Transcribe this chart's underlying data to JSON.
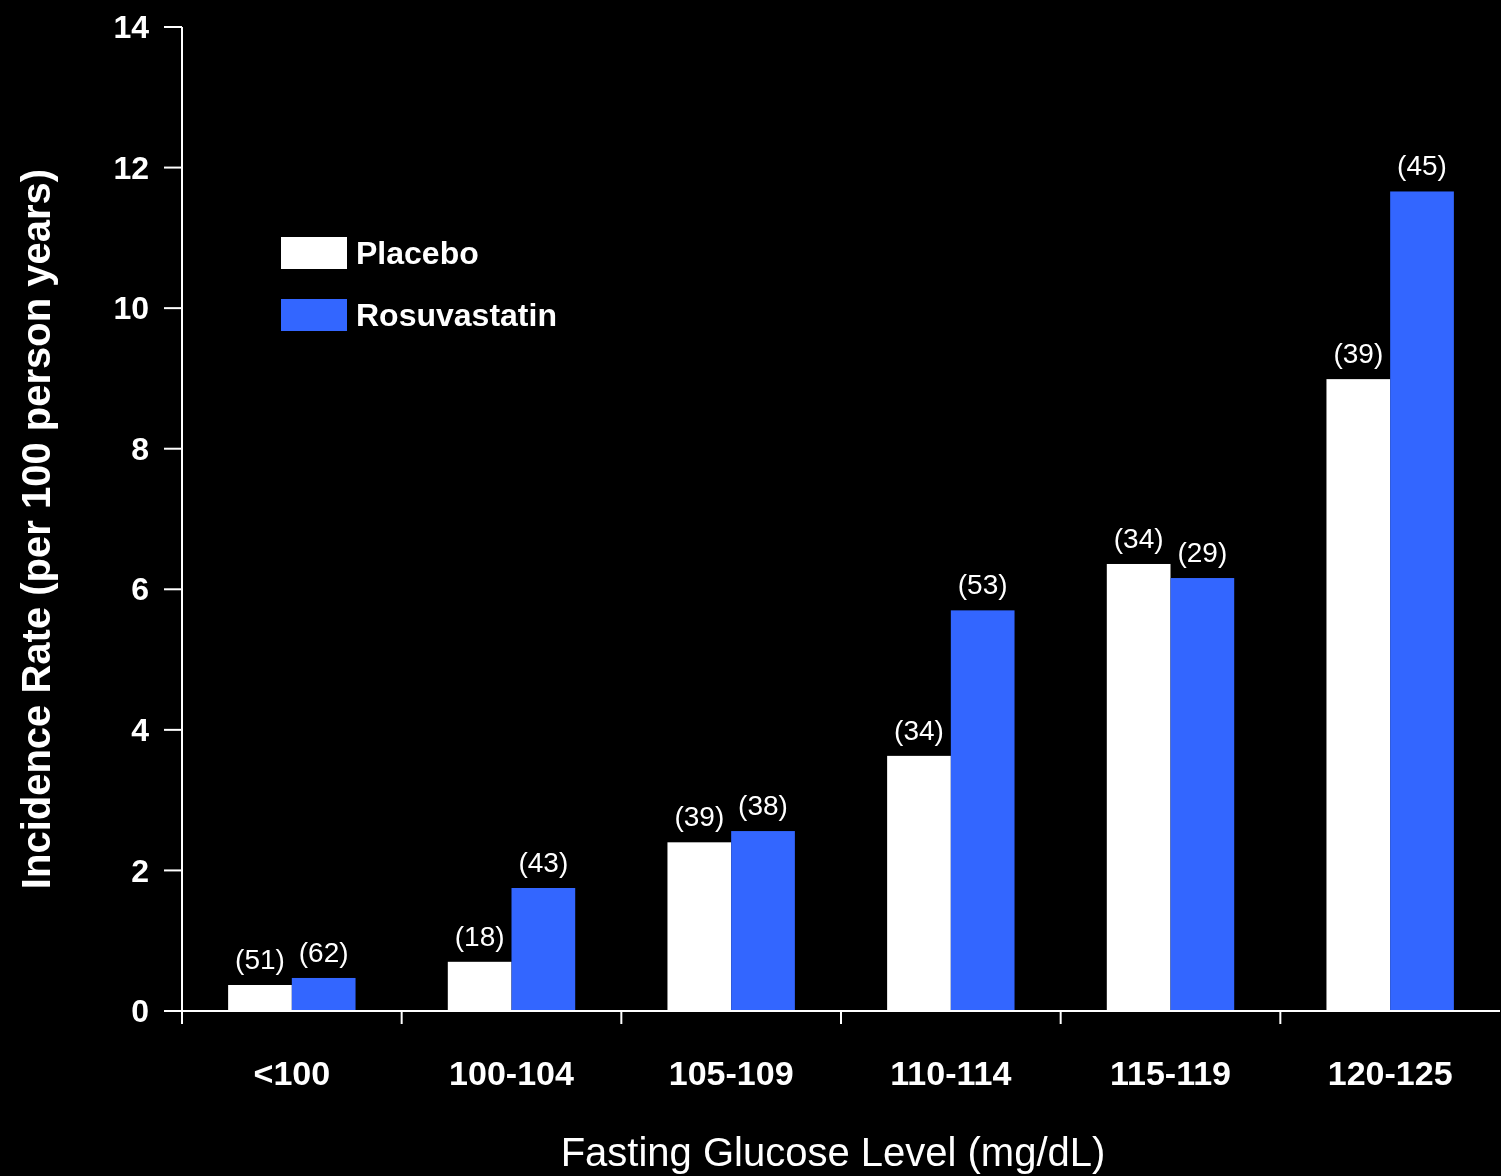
{
  "chart_data": {
    "type": "bar",
    "xlabel": "Fasting Glucose Level (mg/dL)",
    "ylabel": "Incidence Rate (per 100 person years)",
    "categories": [
      "<100",
      "100-104",
      "105-109",
      "110-114",
      "115-119",
      "120-125"
    ],
    "series": [
      {
        "name": "Placebo",
        "color": "#ffffff",
        "values": [
          0.37,
          0.7,
          2.4,
          3.63,
          6.36,
          8.99
        ]
      },
      {
        "name": "Rosuvastatin",
        "color": "#3366ff",
        "values": [
          0.47,
          1.75,
          2.56,
          5.7,
          6.16,
          11.66
        ]
      }
    ],
    "annotations": [
      {
        "text": "(51)",
        "x": "<100",
        "y": 0.37
      },
      {
        "text": "(62)",
        "x": "<100",
        "y": 0.47
      },
      {
        "text": "(18)",
        "x": "100-104",
        "y": 0.7
      },
      {
        "text": "(43)",
        "x": "100-104",
        "y": 1.75
      },
      {
        "text": "(39)",
        "x": "105-109",
        "y": 2.4
      },
      {
        "text": "(38)",
        "x": "105-109",
        "y": 2.56
      },
      {
        "text": "(34)",
        "x": "110-114",
        "y": 3.63
      },
      {
        "text": "(53)",
        "x": "110-114",
        "y": 5.7
      },
      {
        "text": "(34)",
        "x": "115-119",
        "y": 6.36
      },
      {
        "text": "(29)",
        "x": "115-119",
        "y": 6.16
      },
      {
        "text": "(39)",
        "x": "120-125",
        "y": 8.99
      },
      {
        "text": "(45)",
        "x": "120-125",
        "y": 11.66
      }
    ],
    "ylim": [
      0,
      14
    ],
    "yticks": [
      0,
      2,
      4,
      6,
      8,
      10,
      12,
      14
    ],
    "grid": false,
    "legend": "top left"
  }
}
